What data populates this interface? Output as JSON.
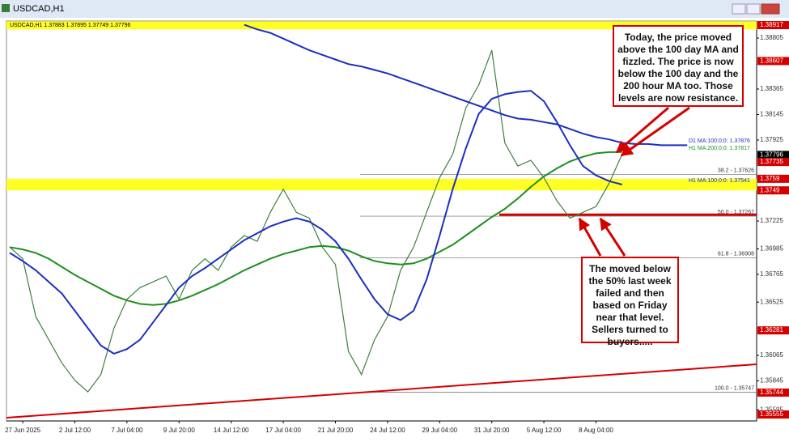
{
  "chart_data": {
    "type": "line",
    "window_title": "USDCAD,H1",
    "subtitle": "USDCAD,H1  1.37883 1.37895 1.37749 1.37796",
    "categories": [
      null,
      "27 Jun 2025",
      null,
      null,
      null,
      "2 Jul 12:00",
      null,
      null,
      null,
      "7 Jul 04:00",
      null,
      null,
      null,
      "9 Jul 20:00",
      null,
      null,
      null,
      "14 Jul 12:00",
      null,
      null,
      null,
      "17 Jul 04:00",
      null,
      null,
      null,
      "21 Jul 20:00",
      null,
      null,
      null,
      "24 Jul 12:00",
      null,
      null,
      null,
      "29 Jul 04:00",
      null,
      null,
      null,
      "31 Jul 20:00",
      null,
      null,
      null,
      "5 Aug 12:00",
      null,
      null,
      null,
      "8 Aug 04:00",
      null,
      null,
      null,
      null,
      null,
      null,
      null
    ],
    "series": [
      {
        "color": "#3f7f3f",
        "values": [
          1.37,
          1.369,
          1.364,
          1.362,
          1.36,
          1.3585,
          1.3575,
          1.359,
          1.363,
          1.3655,
          1.3665,
          1.367,
          1.3675,
          1.3655,
          1.368,
          1.369,
          1.368,
          1.37,
          1.371,
          1.3705,
          1.373,
          1.375,
          1.373,
          1.3725,
          1.37,
          1.3685,
          1.361,
          1.359,
          1.362,
          1.364,
          1.368,
          1.37,
          1.373,
          1.376,
          1.378,
          1.382,
          1.384,
          1.387,
          1.379,
          1.377,
          1.3775,
          1.376,
          1.374,
          1.3725,
          1.373,
          1.3735,
          1.3755,
          1.378,
          null,
          null,
          null,
          null,
          null
        ]
      },
      {
        "name": "D1 MA:100:0:0: 1.37876",
        "color": "#1c2fbf",
        "values": [
          null,
          null,
          null,
          null,
          null,
          null,
          null,
          null,
          null,
          null,
          null,
          null,
          null,
          null,
          null,
          null,
          null,
          null,
          1.3892,
          1.3888,
          1.3885,
          1.388,
          1.3875,
          1.387,
          1.3866,
          1.3862,
          1.3858,
          1.3856,
          1.3853,
          1.385,
          1.3846,
          1.3842,
          1.3838,
          1.3834,
          1.383,
          1.3826,
          1.3822,
          1.3818,
          1.3814,
          1.3811,
          1.381,
          1.3808,
          1.3806,
          1.3802,
          1.3798,
          1.3795,
          1.3793,
          1.379,
          1.3789,
          1.3789,
          1.3788,
          1.3788,
          1.3788
        ]
      },
      {
        "name": "H1 MA:200:0:0: 1.37817",
        "color": "#1f8f1f",
        "values": [
          1.37,
          1.3698,
          1.3695,
          1.369,
          1.3683,
          1.3676,
          1.367,
          1.3664,
          1.3658,
          1.3654,
          1.3651,
          1.365,
          1.3651,
          1.3654,
          1.3658,
          1.3663,
          1.3668,
          1.3674,
          1.368,
          1.3685,
          1.369,
          1.3694,
          1.3697,
          1.37,
          1.3701,
          1.37,
          1.3697,
          1.3692,
          1.3688,
          1.3686,
          1.3685,
          1.3686,
          1.369,
          1.3696,
          1.3702,
          1.371,
          1.3718,
          1.3726,
          1.3733,
          1.3742,
          1.3752,
          1.3761,
          1.3768,
          1.3774,
          1.3778,
          1.3781,
          1.3782,
          1.3782,
          null,
          null,
          null,
          null,
          null
        ]
      },
      {
        "name": "H1 MA:100:0:0: 1.37541",
        "color": "#1c2fbf",
        "values": [
          1.3695,
          1.3688,
          1.368,
          1.367,
          1.366,
          1.3645,
          1.363,
          1.3615,
          1.3608,
          1.3612,
          1.362,
          1.3635,
          1.365,
          1.3665,
          1.3675,
          1.3682,
          1.369,
          1.3698,
          1.3706,
          1.3712,
          1.3718,
          1.3722,
          1.3725,
          1.3722,
          1.3715,
          1.3705,
          1.369,
          1.3672,
          1.3655,
          1.3642,
          1.3637,
          1.3645,
          1.3672,
          1.371,
          1.375,
          1.3785,
          1.3815,
          1.3828,
          1.3832,
          1.3834,
          1.3835,
          1.3826,
          1.3808,
          1.3788,
          1.377,
          1.3762,
          1.3757,
          1.3754,
          null,
          null,
          null,
          null,
          null
        ]
      }
    ],
    "ylim": [
      1.35499,
      1.38952
    ],
    "yticks": [
      1.35595,
      1.35845,
      1.36065,
      1.36525,
      1.36765,
      1.36985,
      1.37225,
      1.37925,
      1.38145,
      1.38365,
      1.38805
    ],
    "levels": [
      {
        "value": 1.38917,
        "color": "#d40000"
      },
      {
        "value": 1.38607,
        "color": "#d40000"
      },
      {
        "value": 1.37796,
        "color": "#000000"
      },
      {
        "value": 1.37735,
        "color": "#d40000"
      },
      {
        "value": 1.3759,
        "color": "#d40000"
      },
      {
        "value": 1.3749,
        "color": "#d40000"
      },
      {
        "value": 1.36281,
        "color": "#d40000"
      },
      {
        "value": 1.35744,
        "color": "#d40000"
      },
      {
        "value": 1.35555,
        "color": "#d40000"
      }
    ],
    "zones": [
      {
        "ylim": [
          1.3888,
          1.3895
        ],
        "color": "#ffff00"
      },
      {
        "ylim": [
          1.3749,
          1.3759
        ],
        "color": "#ffff00"
      }
    ],
    "fib_levels": [
      {
        "value": 1.37626,
        "label": "38.2 - 1.37626"
      },
      {
        "value": 1.37267,
        "label": "50.0 - 1.37267"
      },
      {
        "value": 1.36908,
        "label": "61.8 - 1.36908"
      },
      {
        "value": 1.35747,
        "label": "100.0 - 1.35747"
      }
    ],
    "support_line": {
      "value": 1.3728,
      "color": "#d40000"
    },
    "annotations": [
      "Today, the price moved above the 100 day MA and fizzled. The price is now below the 100 day and the 200 hour MA too. Those levels are now resistance.",
      "The moved below the 50% last week failed and then based on Friday near that level. Sellers turned to buyers....."
    ]
  }
}
